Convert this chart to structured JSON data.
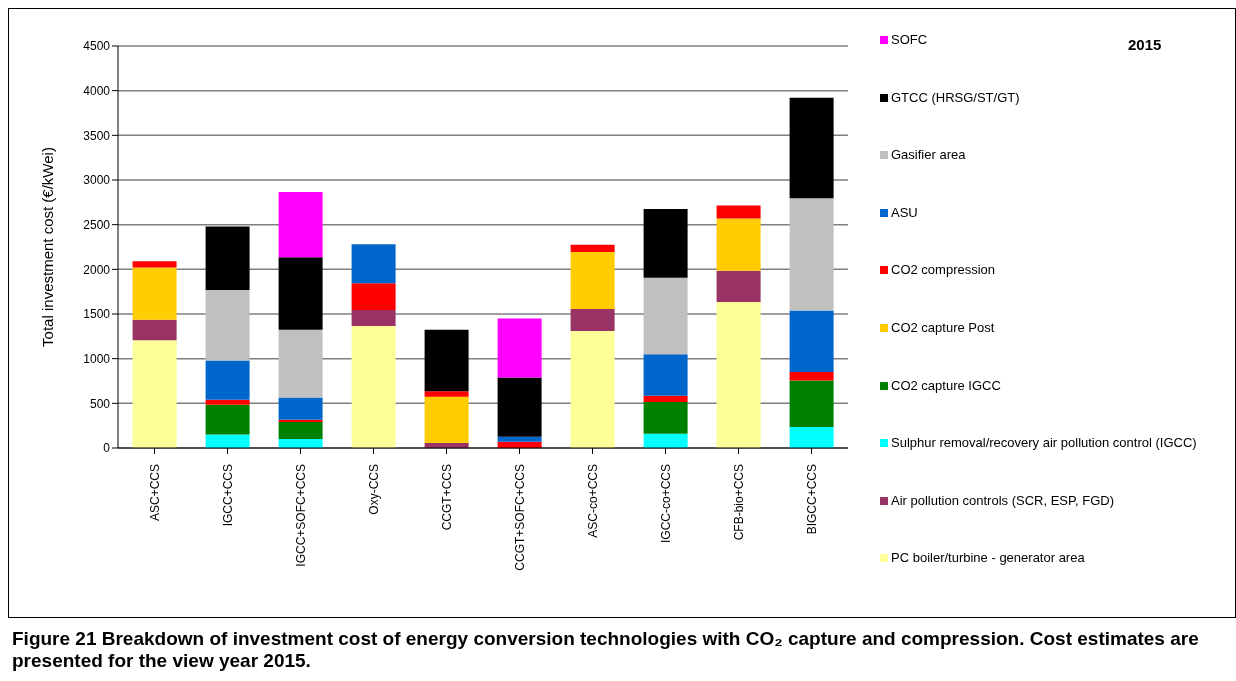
{
  "chart_data": {
    "type": "bar",
    "stacked": true,
    "ylabel": "Total investment cost  (€/kWei)",
    "title": "Figure 21 Breakdown of investment cost of energy conversion technologies with CO₂ capture and compression. Cost estimates are presented for the view year 2015.",
    "annotations": [
      "2015"
    ],
    "categories": [
      "ASC+CCS",
      "IGCC+CCS",
      "IGCC+SOFC+CCS",
      "Oxy-CCS",
      "CCGT+CCS",
      "CCGT+SOFC+CCS",
      "ASC-co+CCS",
      "IGCC-co+CCS",
      "CFB-bio+CCS",
      "BIGCC+CCS"
    ],
    "ylim": [
      0,
      4500
    ],
    "yticks": [
      0,
      500,
      1000,
      1500,
      2000,
      2500,
      3000,
      3500,
      4000,
      4500
    ],
    "grid": "y",
    "legend": "right",
    "series": [
      {
        "name": "PC boiler/turbine - generator area",
        "color": "#ffff99",
        "values": [
          1205,
          null,
          null,
          1365,
          null,
          null,
          1310,
          null,
          1635,
          null
        ]
      },
      {
        "name": "Air pollution controls (SCR, ESP, FGD)",
        "color": "#993366",
        "values": [
          230,
          null,
          null,
          180,
          55,
          null,
          245,
          null,
          350,
          null
        ]
      },
      {
        "name": "Sulphur removal/recovery air pollution control (IGCC)",
        "color": "#00ffff",
        "values": [
          null,
          150,
          100,
          null,
          null,
          null,
          null,
          160,
          null,
          235
        ]
      },
      {
        "name": "CO2 capture IGCC",
        "color": "#008000",
        "values": [
          null,
          335,
          190,
          null,
          null,
          null,
          null,
          355,
          null,
          520
        ]
      },
      {
        "name": "CO2 capture Post",
        "color": "#ffcc00",
        "values": [
          585,
          null,
          null,
          null,
          520,
          null,
          640,
          null,
          585,
          null
        ]
      },
      {
        "name": "CO2 compression",
        "color": "#ff0000",
        "values": [
          70,
          55,
          25,
          300,
          60,
          70,
          80,
          70,
          145,
          95
        ]
      },
      {
        "name": "ASU",
        "color": "#0066cc",
        "values": [
          null,
          440,
          250,
          435,
          null,
          55,
          null,
          465,
          null,
          690
        ]
      },
      {
        "name": "Gasifier area",
        "color": "#c0c0c0",
        "values": [
          null,
          790,
          760,
          null,
          null,
          null,
          null,
          855,
          null,
          1255
        ]
      },
      {
        "name": "GTCC (HRSG/ST/GT)",
        "color": "#000000",
        "values": [
          null,
          710,
          810,
          null,
          690,
          665,
          null,
          770,
          null,
          1125
        ]
      },
      {
        "name": "SOFC",
        "color": "#ff00ff",
        "values": [
          null,
          null,
          730,
          null,
          null,
          660,
          null,
          null,
          null,
          null
        ]
      }
    ]
  }
}
